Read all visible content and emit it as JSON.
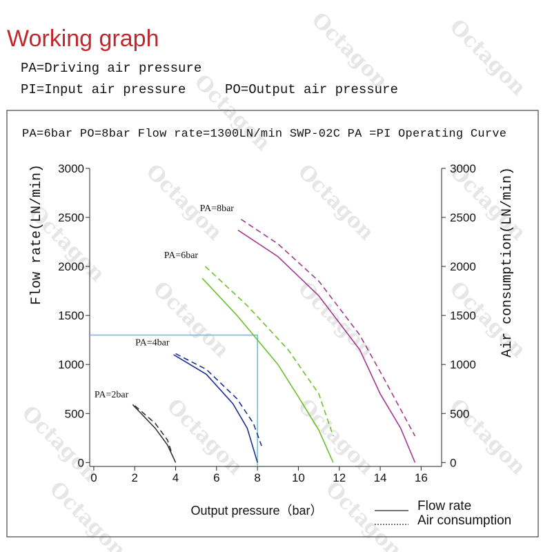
{
  "header": {
    "title": "Working graph",
    "notes": [
      "PA=Driving air pressure",
      "PI=Input air pressure",
      "PO=Output air pressure"
    ],
    "watermark": "Octagon"
  },
  "chart_data": {
    "type": "line",
    "title": "PA=6bar PO=8bar  Flow rate=1300LN/min SWP-02C PA =PI Operating Curve",
    "x_label": "Output pressure（bar）",
    "y_label": "Flow rate(LN/min)",
    "y2_label": "Air consumption(LN/min)",
    "xlim": [
      -0.2,
      17
    ],
    "xticks": [
      0,
      2,
      4,
      6,
      8,
      10,
      12,
      14,
      16
    ],
    "ylim": [
      -40,
      3000
    ],
    "yticks": [
      0,
      500,
      1000,
      1500,
      2000,
      2500,
      3000
    ],
    "y2lim": [
      -40,
      3000
    ],
    "y2ticks": [
      0,
      500,
      1000,
      1500,
      2000,
      2500,
      3000
    ],
    "legend": [
      "Flow rate",
      "Air consumption"
    ],
    "reference": {
      "x": 8,
      "y": 1300,
      "color": "#5bc0d8"
    },
    "curves": [
      {
        "label": "PA=2bar",
        "color": "#333333",
        "flow_x": [
          1.9,
          3,
          3.6,
          4
        ],
        "flow": [
          590,
          350,
          180,
          0
        ],
        "air_x": [
          2,
          3,
          3.6,
          3.8
        ],
        "air": [
          580,
          400,
          230,
          105
        ]
      },
      {
        "label": "PA=4bar",
        "color": "#1a2f8f",
        "flow_x": [
          3.9,
          5.5,
          6.8,
          7.5,
          8
        ],
        "flow": [
          1100,
          900,
          600,
          350,
          0
        ],
        "air_x": [
          4,
          5.5,
          7,
          7.8,
          8.2
        ],
        "air": [
          1110,
          950,
          650,
          400,
          170
        ]
      },
      {
        "label": "PA=6bar",
        "color": "#6cbf2a",
        "flow_x": [
          5.3,
          7,
          9,
          10,
          11,
          11.7
        ],
        "flow": [
          1880,
          1500,
          1000,
          670,
          330,
          0
        ],
        "air_x": [
          5.45,
          7.5,
          9.5,
          11,
          11.7
        ],
        "air": [
          2000,
          1600,
          1150,
          700,
          270
        ]
      },
      {
        "label": "PA=8bar",
        "color": "#a0388f",
        "flow_x": [
          7.05,
          9,
          11,
          13,
          14,
          15,
          15.7
        ],
        "flow": [
          2370,
          2100,
          1700,
          1150,
          700,
          350,
          0
        ],
        "air_x": [
          7.2,
          9,
          11,
          13,
          14.2,
          15.7
        ],
        "air": [
          2480,
          2230,
          1850,
          1300,
          850,
          270
        ]
      }
    ]
  }
}
